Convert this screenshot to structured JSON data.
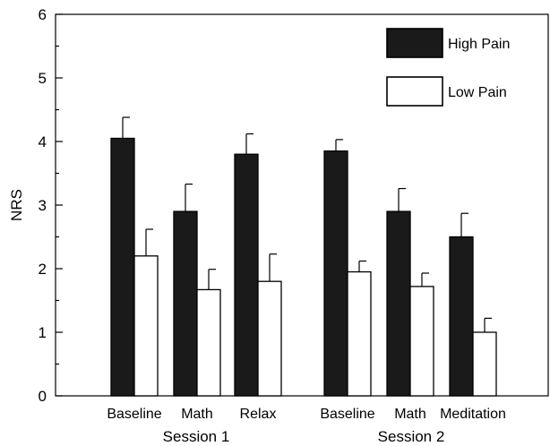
{
  "chart_data": {
    "type": "bar",
    "ylabel": "NRS",
    "ylim": [
      0,
      6
    ],
    "yticks": [
      0,
      1,
      2,
      3,
      4,
      5,
      6
    ],
    "grid": false,
    "legend_position": "top-right",
    "groups": [
      {
        "label": "Session 1",
        "categories": [
          "Baseline",
          "Math",
          "Relax"
        ]
      },
      {
        "label": "Session 2",
        "categories": [
          "Baseline",
          "Math",
          "Meditation"
        ]
      }
    ],
    "series": [
      {
        "name": "High Pain",
        "color": "#1a1a1a",
        "values": [
          4.05,
          2.9,
          3.8,
          3.85,
          2.9,
          2.5
        ],
        "errors": [
          0.33,
          0.43,
          0.32,
          0.18,
          0.36,
          0.37
        ]
      },
      {
        "name": "Low Pain",
        "color": "#ffffff",
        "values": [
          2.2,
          1.67,
          1.8,
          1.95,
          1.72,
          1.0
        ],
        "errors": [
          0.42,
          0.32,
          0.43,
          0.17,
          0.21,
          0.22
        ]
      }
    ]
  }
}
